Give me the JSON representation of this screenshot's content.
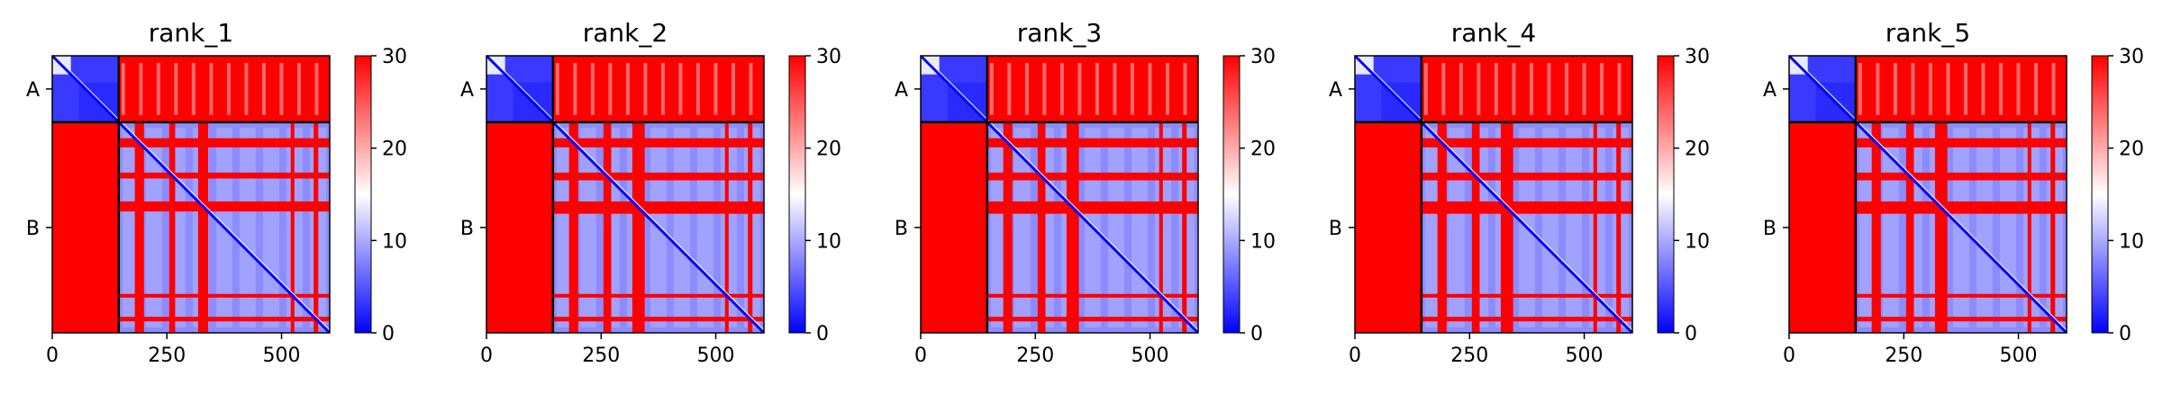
{
  "chart_data": [
    {
      "type": "heatmap",
      "title": "rank_1",
      "chains": [
        "A",
        "B"
      ],
      "chain_boundary": 145,
      "n_residues": 605,
      "xticks": [
        0,
        250,
        500
      ],
      "xtick_labels": [
        "0",
        "250",
        "500"
      ],
      "colorbar": {
        "min": 0,
        "max": 30,
        "ticks": [
          0,
          10,
          20,
          30
        ],
        "tick_labels": [
          "0",
          "10",
          "20",
          "30"
        ],
        "colormap": "bwr"
      },
      "red_bands": [
        [
          180,
          200
        ],
        [
          255,
          268
        ],
        [
          318,
          340
        ],
        [
          520,
          528
        ],
        [
          570,
          580
        ]
      ]
    },
    {
      "type": "heatmap",
      "title": "rank_2",
      "chains": [
        "A",
        "B"
      ],
      "chain_boundary": 145,
      "n_residues": 605,
      "xticks": [
        0,
        250,
        500
      ],
      "xtick_labels": [
        "0",
        "250",
        "500"
      ],
      "colorbar": {
        "min": 0,
        "max": 30,
        "ticks": [
          0,
          10,
          20,
          30
        ],
        "tick_labels": [
          "0",
          "10",
          "20",
          "30"
        ],
        "colormap": "bwr"
      },
      "red_bands": [
        [
          180,
          200
        ],
        [
          255,
          272
        ],
        [
          318,
          345
        ],
        [
          520,
          528
        ],
        [
          570,
          580
        ]
      ]
    },
    {
      "type": "heatmap",
      "title": "rank_3",
      "chains": [
        "A",
        "B"
      ],
      "chain_boundary": 145,
      "n_residues": 605,
      "xticks": [
        0,
        250,
        500
      ],
      "xtick_labels": [
        "0",
        "250",
        "500"
      ],
      "colorbar": {
        "min": 0,
        "max": 30,
        "ticks": [
          0,
          10,
          20,
          30
        ],
        "tick_labels": [
          "0",
          "10",
          "20",
          "30"
        ],
        "colormap": "bwr"
      },
      "red_bands": [
        [
          180,
          200
        ],
        [
          255,
          272
        ],
        [
          318,
          345
        ],
        [
          520,
          528
        ],
        [
          570,
          580
        ]
      ]
    },
    {
      "type": "heatmap",
      "title": "rank_4",
      "chains": [
        "A",
        "B"
      ],
      "chain_boundary": 145,
      "n_residues": 605,
      "xticks": [
        0,
        250,
        500
      ],
      "xtick_labels": [
        "0",
        "250",
        "500"
      ],
      "colorbar": {
        "min": 0,
        "max": 30,
        "ticks": [
          0,
          10,
          20,
          30
        ],
        "tick_labels": [
          "0",
          "10",
          "20",
          "30"
        ],
        "colormap": "bwr"
      },
      "red_bands": [
        [
          180,
          200
        ],
        [
          255,
          272
        ],
        [
          318,
          345
        ],
        [
          520,
          528
        ],
        [
          570,
          580
        ]
      ]
    },
    {
      "type": "heatmap",
      "title": "rank_5",
      "chains": [
        "A",
        "B"
      ],
      "chain_boundary": 145,
      "n_residues": 605,
      "xticks": [
        0,
        250,
        500
      ],
      "xtick_labels": [
        "0",
        "250",
        "500"
      ],
      "colorbar": {
        "min": 0,
        "max": 30,
        "ticks": [
          0,
          10,
          20,
          30
        ],
        "tick_labels": [
          "0",
          "10",
          "20",
          "30"
        ],
        "colormap": "bwr"
      },
      "red_bands": [
        [
          180,
          200
        ],
        [
          255,
          272
        ],
        [
          318,
          345
        ],
        [
          520,
          528
        ],
        [
          570,
          580
        ]
      ]
    }
  ],
  "colors": {
    "low": "#0000ff",
    "mid": "#ffffff",
    "high": "#ff0000",
    "frame": "#000000"
  }
}
